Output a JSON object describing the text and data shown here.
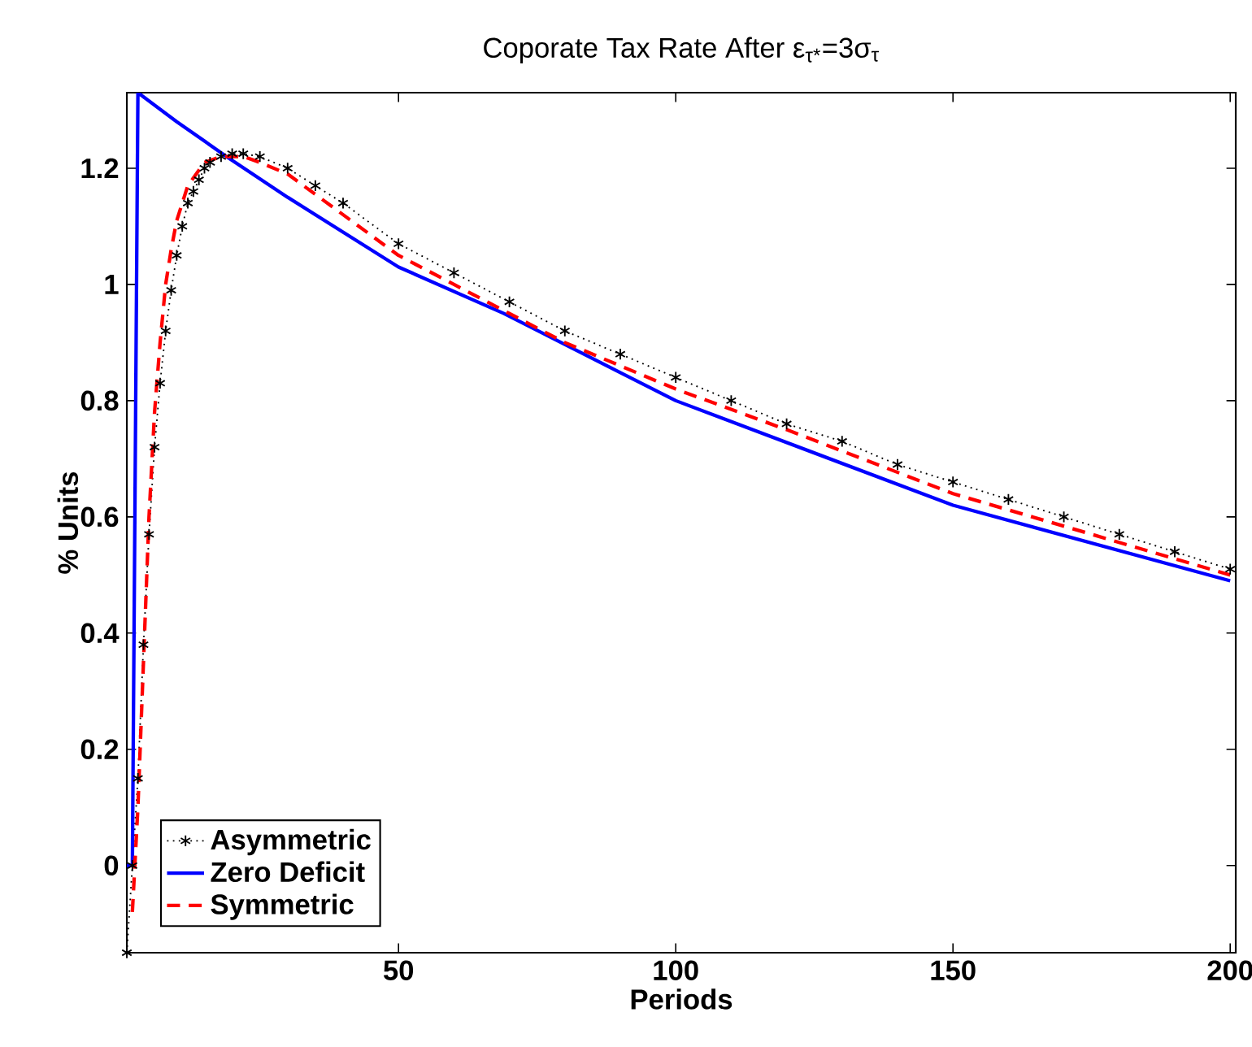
{
  "chart_data": {
    "type": "line",
    "title": "Coporate Tax Rate After ε$_{τ*}$=3σ$_{τ}$",
    "xlabel": "Periods",
    "ylabel": "% Units",
    "xlim": [
      1,
      201
    ],
    "ylim": [
      -0.15,
      1.33
    ],
    "xticks": [
      50,
      100,
      150,
      200
    ],
    "yticks": [
      0,
      0.2,
      0.4,
      0.6,
      0.8,
      1,
      1.2
    ],
    "grid": false,
    "legend": "bottom left",
    "series": [
      {
        "name": "Asymmetric",
        "color": "#000000",
        "line_style": "dotted",
        "marker": "cross",
        "x": [
          1,
          2,
          3,
          4,
          5,
          6,
          7,
          8,
          9,
          10,
          11,
          12,
          13,
          14,
          15,
          16,
          18,
          20,
          22,
          25,
          30,
          35,
          40,
          50,
          60,
          70,
          80,
          90,
          100,
          110,
          120,
          130,
          140,
          150,
          160,
          170,
          180,
          190,
          200
        ],
        "values": [
          -0.15,
          0.0,
          0.15,
          0.38,
          0.57,
          0.72,
          0.83,
          0.92,
          0.99,
          1.05,
          1.1,
          1.14,
          1.16,
          1.18,
          1.2,
          1.21,
          1.22,
          1.225,
          1.225,
          1.22,
          1.2,
          1.17,
          1.14,
          1.07,
          1.02,
          0.97,
          0.92,
          0.88,
          0.84,
          0.8,
          0.76,
          0.73,
          0.69,
          0.66,
          0.63,
          0.6,
          0.57,
          0.54,
          0.51
        ]
      },
      {
        "name": "Zero Deficit",
        "color": "#0000ff",
        "line_style": "solid",
        "marker": "none",
        "x": [
          1,
          2,
          3,
          10,
          19,
          30,
          50,
          69,
          100,
          150,
          200
        ],
        "values": [
          0.0,
          0.0,
          1.33,
          1.28,
          1.22,
          1.15,
          1.03,
          0.95,
          0.8,
          0.62,
          0.49
        ]
      },
      {
        "name": "Symmetric",
        "color": "#ff0000",
        "line_style": "dashed",
        "marker": "none",
        "x": [
          2,
          3,
          4,
          5,
          6,
          7,
          8,
          9,
          10,
          12,
          15,
          18,
          22,
          25,
          30,
          40,
          50,
          60,
          70,
          80,
          90,
          100,
          120,
          150,
          175,
          200
        ],
        "values": [
          -0.08,
          0.1,
          0.35,
          0.6,
          0.78,
          0.9,
          1.0,
          1.06,
          1.11,
          1.17,
          1.21,
          1.22,
          1.22,
          1.21,
          1.19,
          1.12,
          1.05,
          1.0,
          0.95,
          0.9,
          0.86,
          0.82,
          0.75,
          0.64,
          0.57,
          0.5
        ]
      }
    ]
  }
}
